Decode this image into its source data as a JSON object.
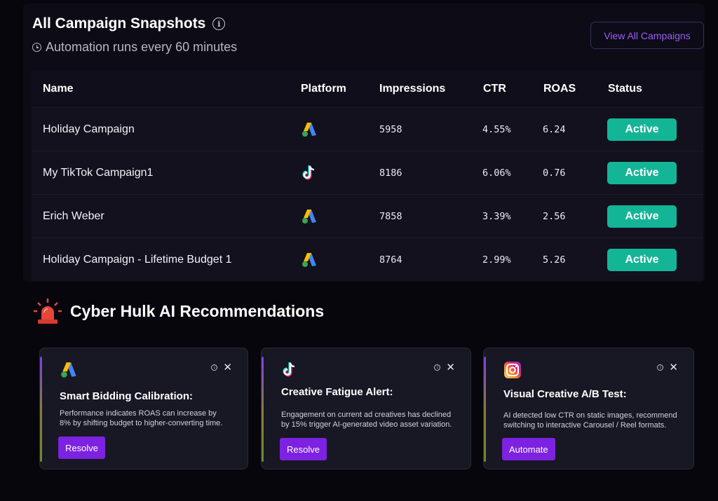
{
  "header": {
    "title": "All Campaign Snapshots",
    "subtitle": "Automation runs every 60 minutes",
    "view_all_label": "View All Campaigns"
  },
  "table": {
    "columns": [
      "Name",
      "Platform",
      "Impressions",
      "CTR",
      "ROAS",
      "Status"
    ],
    "rows": [
      {
        "name": "Holiday Campaign",
        "platform": "google-ads-icon",
        "impressions": "5958",
        "ctr": "4.55%",
        "roas": "6.24",
        "status": "Active"
      },
      {
        "name": "My TikTok Campaign1",
        "platform": "tiktok-icon",
        "impressions": "8186",
        "ctr": "6.06%",
        "roas": "0.76",
        "status": "Active"
      },
      {
        "name": "Erich Weber",
        "platform": "google-ads-icon",
        "impressions": "7858",
        "ctr": "3.39%",
        "roas": "2.56",
        "status": "Active"
      },
      {
        "name": "Holiday Campaign - Lifetime Budget 1",
        "platform": "google-ads-icon",
        "impressions": "8764",
        "ctr": "2.99%",
        "roas": "5.26",
        "status": "Active"
      }
    ]
  },
  "recommendations": {
    "title": "Cyber Hulk AI Recommendations",
    "cards": [
      {
        "icon": "google-ads-icon",
        "title": "Smart Bidding Calibration:",
        "body_line1": "Performance indicates ROAS can increase by",
        "body_line2": "8% by shifting budget to higher-converting time.",
        "button": "Resolve"
      },
      {
        "icon": "tiktok-icon",
        "title": "Creative Fatigue Alert:",
        "body_line1": "Engagement on current ad creatives has declined",
        "body_line2": "by 15% trigger AI-generated video asset variation.",
        "button": "Resolve"
      },
      {
        "icon": "instagram-icon",
        "title": "Visual Creative A/B Test:",
        "body_line1": "AI detected low CTR on static images, recommend",
        "body_line2": "switching to interactive Carousel / Reel formats.",
        "button": "Automate"
      }
    ]
  },
  "colors": {
    "accent": "#7c22e0",
    "active_badge": "#13b596",
    "link": "#9d5cf5"
  }
}
